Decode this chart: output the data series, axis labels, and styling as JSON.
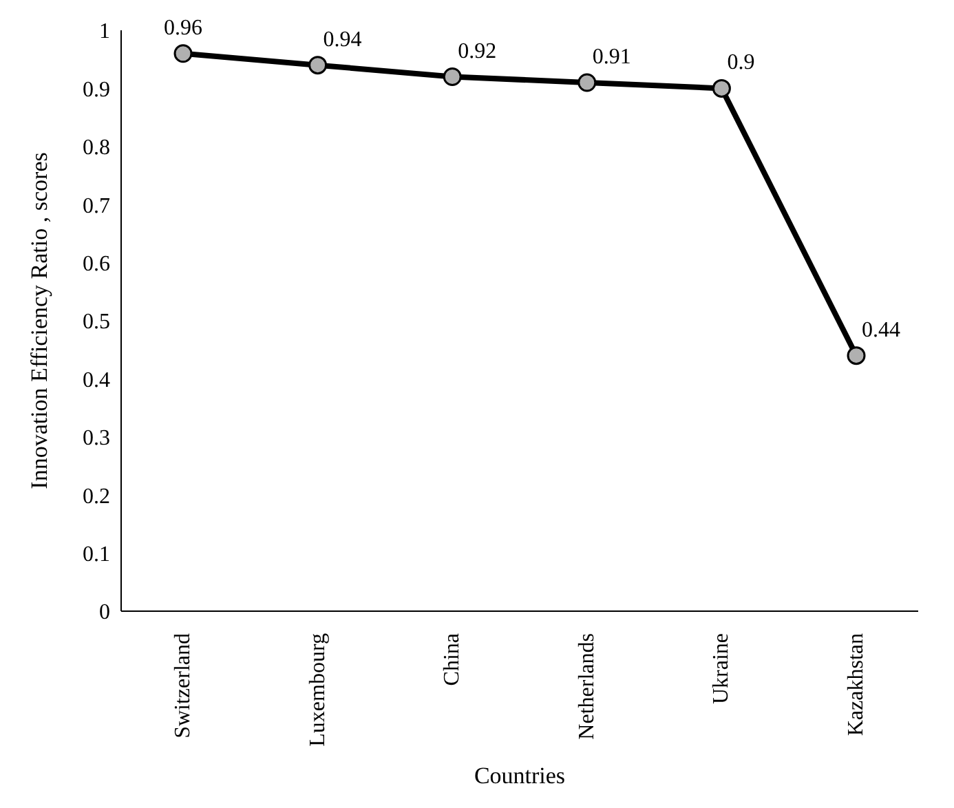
{
  "chart_data": {
    "type": "line",
    "xlabel": "Countries",
    "ylabel": "Innovation Efficiency Ratio , scores",
    "categories": [
      "Switzerland",
      "Luxembourg",
      "China",
      "Netherlands",
      "Ukraine",
      "Kazakhstan"
    ],
    "series": [
      {
        "color": "#000000",
        "values": [
          0.96,
          0.94,
          0.92,
          0.91,
          0.9,
          0.44
        ]
      }
    ],
    "ylim": [
      0,
      1
    ],
    "yticks": [
      0,
      0.1,
      0.2,
      0.3,
      0.4,
      0.5,
      0.6,
      0.7,
      0.8,
      0.9,
      1
    ],
    "grid": false,
    "legend": false,
    "marker": "circle",
    "line_style": "solid",
    "data_labels": true
  }
}
